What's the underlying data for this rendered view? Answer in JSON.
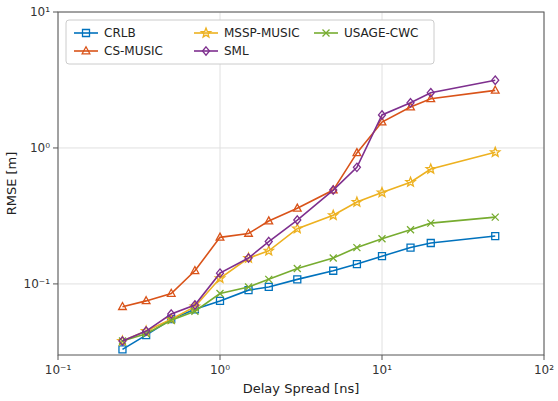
{
  "chart_data": {
    "type": "line",
    "x_label": "Delay Spread [ns]",
    "y_label": "RMSE [m]",
    "log": true,
    "grid": true,
    "legend": "upper left",
    "xlim": [
      0.1,
      100
    ],
    "ylim": [
      0.03,
      10
    ],
    "xticks": [
      {
        "value": 0.1,
        "label": "10⁻¹"
      },
      {
        "value": 1,
        "label": "10⁰"
      },
      {
        "value": 10,
        "label": "10¹"
      },
      {
        "value": 100,
        "label": "10²"
      }
    ],
    "yticks": [
      {
        "value": 0.1,
        "label": "10⁻¹"
      },
      {
        "value": 1,
        "label": "10⁰"
      },
      {
        "value": 10,
        "label": "10¹"
      }
    ],
    "x": [
      0.25,
      0.35,
      0.5,
      0.7,
      1.0,
      1.5,
      2.0,
      3.0,
      5.0,
      7.0,
      10.0,
      15.0,
      20.0,
      50.0
    ],
    "series": [
      {
        "name": "CRLB",
        "color": "#0072BD",
        "marker": "square",
        "line_style": "solid",
        "values": [
          0.033,
          0.042,
          0.055,
          0.065,
          0.075,
          0.09,
          0.095,
          0.108,
          0.125,
          0.14,
          0.16,
          0.185,
          0.2,
          0.225
        ]
      },
      {
        "name": "MSSP-MUSIC",
        "color": "#EDB120",
        "marker": "star",
        "line_style": "solid",
        "values": [
          0.038,
          0.045,
          0.055,
          0.068,
          0.11,
          0.155,
          0.175,
          0.255,
          0.32,
          0.4,
          0.47,
          0.56,
          0.7,
          0.93
        ]
      },
      {
        "name": "USAGE-CWC",
        "color": "#77AC30",
        "marker": "x",
        "line_style": "solid",
        "values": [
          0.038,
          0.043,
          0.054,
          0.063,
          0.085,
          0.095,
          0.108,
          0.13,
          0.155,
          0.185,
          0.215,
          0.25,
          0.28,
          0.31
        ]
      },
      {
        "name": "CS-MUSIC",
        "color": "#D95319",
        "marker": "triangle",
        "line_style": "solid",
        "values": [
          0.068,
          0.075,
          0.085,
          0.125,
          0.22,
          0.235,
          0.29,
          0.36,
          0.49,
          0.92,
          1.55,
          2.0,
          2.3,
          2.65
        ]
      },
      {
        "name": "SML",
        "color": "#7E2F8E",
        "marker": "diamond",
        "line_style": "solid",
        "values": [
          0.038,
          0.045,
          0.06,
          0.07,
          0.12,
          0.155,
          0.205,
          0.295,
          0.49,
          0.72,
          1.75,
          2.15,
          2.55,
          3.15
        ]
      }
    ]
  }
}
